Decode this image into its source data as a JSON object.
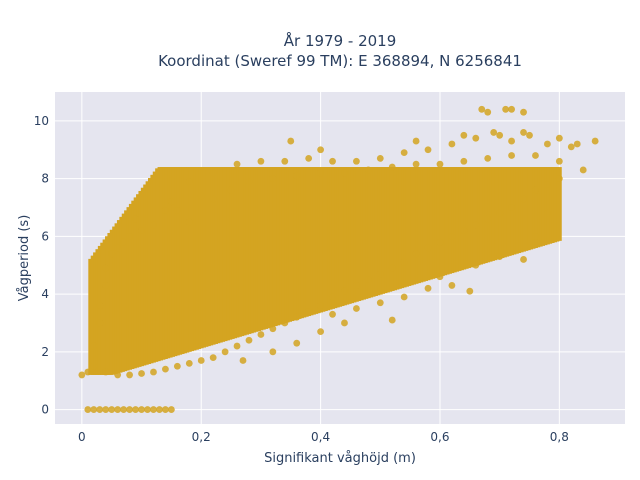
{
  "chart_data": {
    "type": "scatter",
    "title_lines": [
      "År 1979 - 2019",
      "Koordinat (Sweref 99 TM): E 368894, N 6256841"
    ],
    "xlabel": "Signifikant våghöjd (m)",
    "ylabel": "Vågperiod (s)",
    "xlim": [
      -0.045,
      0.91
    ],
    "ylim": [
      -0.5,
      11
    ],
    "xticks": [
      {
        "value": 0,
        "label": "0"
      },
      {
        "value": 0.2,
        "label": "0,2"
      },
      {
        "value": 0.4,
        "label": "0,4"
      },
      {
        "value": 0.6,
        "label": "0,6"
      },
      {
        "value": 0.8,
        "label": "0,8"
      }
    ],
    "yticks": [
      {
        "value": 0,
        "label": "0"
      },
      {
        "value": 2,
        "label": "2"
      },
      {
        "value": 4,
        "label": "4"
      },
      {
        "value": 6,
        "label": "6"
      },
      {
        "value": 8,
        "label": "8"
      },
      {
        "value": 10,
        "label": "10"
      }
    ],
    "grid": true,
    "colors": {
      "marker": "#d4a421",
      "plot_bg": "#e5e5ef",
      "grid": "#ffffff",
      "text": "#2a3f5f"
    },
    "series": [
      {
        "points": [
          [
            0.01,
            0
          ],
          [
            0.02,
            0
          ],
          [
            0.03,
            0
          ],
          [
            0.04,
            0
          ],
          [
            0.05,
            0
          ],
          [
            0.06,
            0
          ],
          [
            0.07,
            0
          ],
          [
            0.08,
            0
          ],
          [
            0.09,
            0
          ],
          [
            0.1,
            0
          ],
          [
            0.11,
            0
          ],
          [
            0.12,
            0
          ],
          [
            0.13,
            0
          ],
          [
            0.14,
            0
          ],
          [
            0.15,
            0
          ],
          [
            0.0,
            1.2
          ],
          [
            0.01,
            1.3
          ],
          [
            0.02,
            1.5
          ],
          [
            0.02,
            2.2
          ],
          [
            0.03,
            3.0
          ],
          [
            0.03,
            3.6
          ],
          [
            0.04,
            4.3
          ],
          [
            0.04,
            4.9
          ],
          [
            0.05,
            5.4
          ],
          [
            0.06,
            5.6
          ],
          [
            0.07,
            5.8
          ],
          [
            0.08,
            6.0
          ],
          [
            0.09,
            6.6
          ],
          [
            0.1,
            6.2
          ],
          [
            0.12,
            6.4
          ],
          [
            0.14,
            6.9
          ],
          [
            0.15,
            7.2
          ],
          [
            0.04,
            1.3
          ],
          [
            0.06,
            1.2
          ],
          [
            0.08,
            1.2
          ],
          [
            0.1,
            1.25
          ],
          [
            0.12,
            1.3
          ],
          [
            0.14,
            1.4
          ],
          [
            0.16,
            1.5
          ],
          [
            0.18,
            1.6
          ],
          [
            0.2,
            1.7
          ],
          [
            0.22,
            1.8
          ],
          [
            0.24,
            2.0
          ],
          [
            0.26,
            2.2
          ],
          [
            0.28,
            2.4
          ],
          [
            0.3,
            2.6
          ],
          [
            0.32,
            2.8
          ],
          [
            0.34,
            3.0
          ],
          [
            0.36,
            3.2
          ],
          [
            0.38,
            3.4
          ],
          [
            0.4,
            3.6
          ],
          [
            0.42,
            3.9
          ],
          [
            0.44,
            4.1
          ],
          [
            0.46,
            4.3
          ],
          [
            0.48,
            4.5
          ],
          [
            0.5,
            4.7
          ],
          [
            0.52,
            4.9
          ],
          [
            0.54,
            5.1
          ],
          [
            0.56,
            5.4
          ],
          [
            0.58,
            5.6
          ],
          [
            0.6,
            5.8
          ],
          [
            0.62,
            6.0
          ],
          [
            0.64,
            6.2
          ],
          [
            0.66,
            6.4
          ],
          [
            0.68,
            6.6
          ],
          [
            0.7,
            6.8
          ],
          [
            0.72,
            7.0
          ],
          [
            0.74,
            7.3
          ],
          [
            0.76,
            7.6
          ],
          [
            0.78,
            7.8
          ],
          [
            0.8,
            8.0
          ],
          [
            0.18,
            7.9
          ],
          [
            0.22,
            8.2
          ],
          [
            0.26,
            8.5
          ],
          [
            0.3,
            8.6
          ],
          [
            0.34,
            8.6
          ],
          [
            0.38,
            8.7
          ],
          [
            0.42,
            8.6
          ],
          [
            0.46,
            8.6
          ],
          [
            0.5,
            8.7
          ],
          [
            0.54,
            8.9
          ],
          [
            0.58,
            9.0
          ],
          [
            0.62,
            9.2
          ],
          [
            0.66,
            9.4
          ],
          [
            0.7,
            9.5
          ],
          [
            0.74,
            9.6
          ],
          [
            0.78,
            9.2
          ],
          [
            0.82,
            9.1
          ],
          [
            0.86,
            9.3
          ],
          [
            0.35,
            9.3
          ],
          [
            0.4,
            9.0
          ],
          [
            0.56,
            9.3
          ],
          [
            0.64,
            9.5
          ],
          [
            0.69,
            9.6
          ],
          [
            0.72,
            9.3
          ],
          [
            0.75,
            9.5
          ],
          [
            0.8,
            9.4
          ],
          [
            0.83,
            9.2
          ],
          [
            0.67,
            10.4
          ],
          [
            0.68,
            10.3
          ],
          [
            0.71,
            10.4
          ],
          [
            0.72,
            10.4
          ],
          [
            0.74,
            10.3
          ],
          [
            0.16,
            6.9
          ],
          [
            0.18,
            6.5
          ],
          [
            0.2,
            7.4
          ],
          [
            0.22,
            7.3
          ],
          [
            0.25,
            7.6
          ],
          [
            0.28,
            7.9
          ],
          [
            0.32,
            8.0
          ],
          [
            0.36,
            8.1
          ],
          [
            0.4,
            8.2
          ],
          [
            0.44,
            8.2
          ],
          [
            0.48,
            8.3
          ],
          [
            0.52,
            8.4
          ],
          [
            0.56,
            8.5
          ],
          [
            0.6,
            8.5
          ],
          [
            0.64,
            8.6
          ],
          [
            0.68,
            8.7
          ],
          [
            0.72,
            8.8
          ],
          [
            0.76,
            8.8
          ],
          [
            0.8,
            8.6
          ],
          [
            0.84,
            8.3
          ],
          [
            0.42,
            3.3
          ],
          [
            0.46,
            3.5
          ],
          [
            0.5,
            3.7
          ],
          [
            0.54,
            3.9
          ],
          [
            0.58,
            4.2
          ],
          [
            0.62,
            4.3
          ],
          [
            0.65,
            4.1
          ],
          [
            0.6,
            4.6
          ],
          [
            0.66,
            5.0
          ],
          [
            0.7,
            5.3
          ],
          [
            0.74,
            5.2
          ],
          [
            0.76,
            6.0
          ],
          [
            0.78,
            6.8
          ],
          [
            0.27,
            1.7
          ],
          [
            0.32,
            2.0
          ],
          [
            0.36,
            2.3
          ],
          [
            0.4,
            2.7
          ],
          [
            0.44,
            3.0
          ],
          [
            0.52,
            3.1
          ]
        ]
      }
    ]
  }
}
